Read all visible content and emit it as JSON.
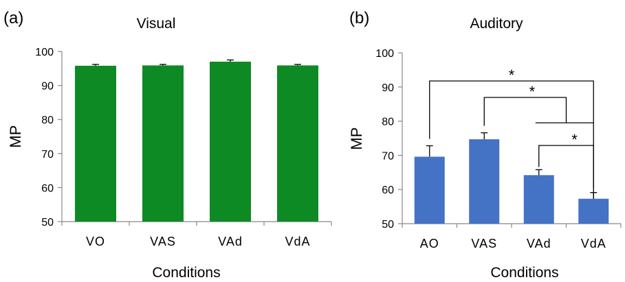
{
  "chart_data": [
    {
      "type": "bar",
      "panel_label": "(a)",
      "title": "Visual",
      "xlabel": "Conditions",
      "ylabel": "MP",
      "ylim": [
        50,
        100
      ],
      "yticks": [
        50,
        60,
        70,
        80,
        90,
        100
      ],
      "tick_labels": [
        "50",
        "60",
        "70",
        "80",
        "90",
        "100"
      ],
      "categories": [
        "VO",
        "VAS",
        "VAd",
        "VdA"
      ],
      "values": [
        95.8,
        95.9,
        97.0,
        95.9
      ],
      "errors": [
        0.4,
        0.3,
        0.5,
        0.3
      ],
      "color": "#0e8a24",
      "grid": false,
      "annotations": []
    },
    {
      "type": "bar",
      "panel_label": "(b)",
      "title": "Auditory",
      "xlabel": "Conditions",
      "ylabel": "MP",
      "ylim": [
        50,
        100
      ],
      "yticks": [
        50,
        60,
        70,
        80,
        90,
        100
      ],
      "tick_labels": [
        "50",
        "60",
        "70",
        "80",
        "90",
        "100"
      ],
      "categories": [
        "AO",
        "VAS",
        "VAd",
        "VdA"
      ],
      "values": [
        69.6,
        74.7,
        64.2,
        57.3
      ],
      "errors": [
        3.2,
        1.9,
        1.6,
        1.8
      ],
      "color": "#4472c4",
      "grid": false,
      "annotations": [
        {
          "from": "AO",
          "to": "VdA",
          "label": "*"
        },
        {
          "from": "VAS",
          "to": "VAd/VdA",
          "label": "*"
        },
        {
          "from": "VAd",
          "to": "VdA",
          "label": "*"
        }
      ]
    }
  ]
}
